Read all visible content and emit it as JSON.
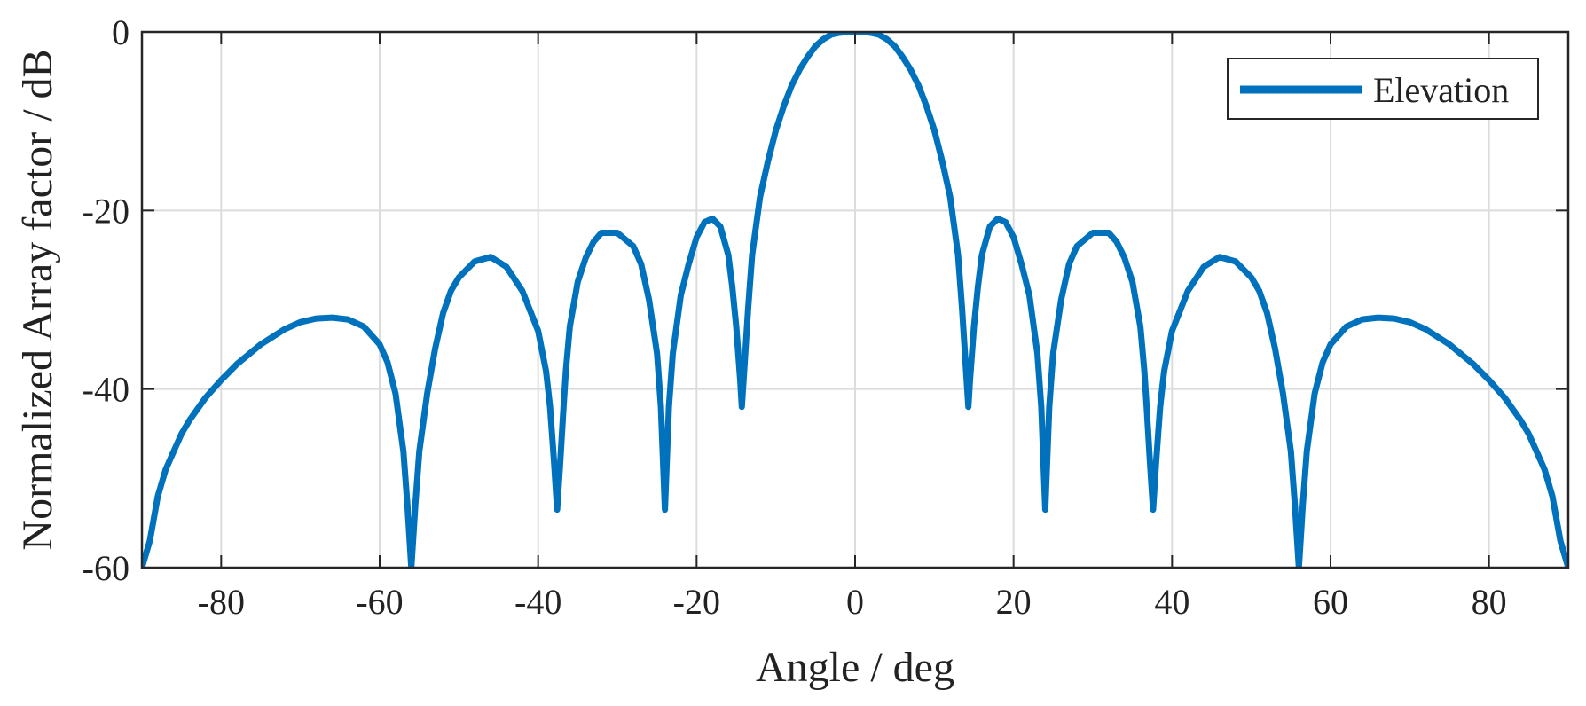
{
  "chart_data": {
    "type": "line",
    "title": "",
    "xlabel": "Angle / deg",
    "ylabel": "Normalized Array factor / dB",
    "xlim": [
      -90,
      90
    ],
    "ylim": [
      -60,
      0
    ],
    "x_ticks": [
      -80,
      -60,
      -40,
      -20,
      0,
      20,
      40,
      60,
      80
    ],
    "y_ticks": [
      -60,
      -40,
      -20,
      0
    ],
    "x_tick_labels": [
      "-80",
      "-60",
      "-40",
      "-20",
      "0",
      "20",
      "40",
      "60",
      "80"
    ],
    "y_tick_labels": [
      "-60",
      "-40",
      "-20",
      "0"
    ],
    "grid": true,
    "legend_position": "top-right",
    "series": [
      {
        "name": "Elevation",
        "color": "#0072BD",
        "x": [
          -90,
          -89,
          -88,
          -87,
          -86,
          -85,
          -84,
          -82,
          -80,
          -78,
          -75,
          -72,
          -70,
          -68,
          -66,
          -64,
          -62,
          -60,
          -59,
          -58,
          -57,
          -56.5,
          -56,
          -55.5,
          -55,
          -54,
          -53,
          -52,
          -51,
          -50,
          -48,
          -46,
          -44,
          -42,
          -40,
          -39,
          -38.5,
          -38,
          -37.6,
          -37.2,
          -36.8,
          -36.5,
          -36,
          -35,
          -34,
          -33,
          -32,
          -30,
          -28,
          -27,
          -26,
          -25,
          -24.5,
          -24,
          -23.5,
          -23,
          -22,
          -21,
          -20,
          -19,
          -18,
          -17,
          -16,
          -15.5,
          -15,
          -14.5,
          -14.3,
          -14,
          -13.5,
          -13,
          -12,
          -11,
          -10,
          -9,
          -8,
          -7,
          -6,
          -5,
          -4,
          -3,
          -2,
          -1,
          0,
          1,
          2,
          3,
          4,
          5,
          6,
          7,
          8,
          9,
          10,
          11,
          12,
          13,
          13.5,
          14,
          14.3,
          14.5,
          15,
          15.5,
          16,
          17,
          18,
          19,
          20,
          21,
          22,
          23,
          23.5,
          24,
          24.5,
          25,
          26,
          27,
          28,
          30,
          32,
          33,
          34,
          35,
          36,
          36.5,
          36.8,
          37.2,
          37.6,
          38,
          38.5,
          39,
          40,
          42,
          44,
          46,
          48,
          50,
          51,
          52,
          53,
          54,
          55,
          55.5,
          56,
          56.5,
          57,
          58,
          59,
          60,
          62,
          64,
          66,
          68,
          70,
          72,
          75,
          78,
          80,
          82,
          84,
          85,
          86,
          87,
          88,
          89,
          90
        ],
        "y": [
          -60,
          -57,
          -52,
          -49,
          -47,
          -45,
          -43.5,
          -41,
          -39,
          -37.2,
          -35,
          -33.3,
          -32.5,
          -32.1,
          -32,
          -32.2,
          -33,
          -35,
          -37,
          -40.5,
          -47,
          -53,
          -60,
          -53,
          -47,
          -40.5,
          -35.5,
          -31.5,
          -29,
          -27.5,
          -25.7,
          -25.2,
          -26.3,
          -29,
          -33.5,
          -38,
          -42,
          -48,
          -53.5,
          -48,
          -42,
          -38,
          -33,
          -28,
          -25.3,
          -23.5,
          -22.5,
          -22.5,
          -24,
          -26,
          -30,
          -36,
          -42,
          -53.5,
          -42,
          -36,
          -29.5,
          -26,
          -23,
          -21.3,
          -20.9,
          -21.8,
          -25,
          -28.5,
          -33,
          -39,
          -42,
          -38,
          -31,
          -25,
          -18.5,
          -14.5,
          -11,
          -8.3,
          -6,
          -4.2,
          -2.8,
          -1.6,
          -0.8,
          -0.3,
          -0.1,
          0,
          0,
          0,
          -0.1,
          -0.3,
          -0.8,
          -1.6,
          -2.8,
          -4.2,
          -6,
          -8.3,
          -11,
          -14.5,
          -18.5,
          -25,
          -31,
          -38,
          -42,
          -39,
          -33,
          -28.5,
          -25,
          -21.8,
          -20.9,
          -21.3,
          -23,
          -26,
          -29.5,
          -36,
          -42,
          -53.5,
          -42,
          -36,
          -30,
          -26,
          -24,
          -22.5,
          -22.5,
          -23.5,
          -25.3,
          -28,
          -33,
          -38,
          -42,
          -48,
          -53.5,
          -48,
          -42,
          -38,
          -33.5,
          -29,
          -26.3,
          -25.2,
          -25.7,
          -27.5,
          -29,
          -31.5,
          -35.5,
          -40.5,
          -47,
          -53,
          -60,
          -53,
          -47,
          -40.5,
          -37,
          -35,
          -33,
          -32.2,
          -32,
          -32.1,
          -32.5,
          -33.3,
          -35,
          -37.2,
          -39,
          -41,
          -43.5,
          -45,
          -47,
          -49,
          -52,
          -57,
          -60
        ]
      }
    ]
  }
}
